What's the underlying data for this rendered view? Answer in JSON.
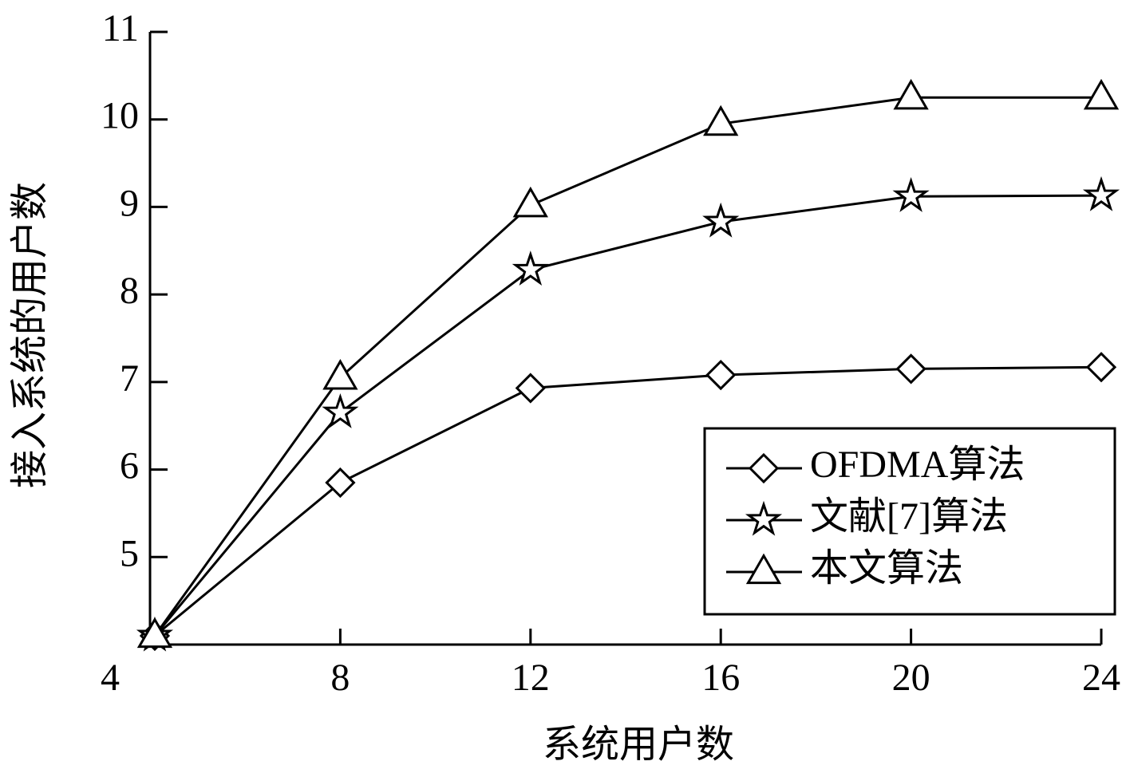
{
  "chart_data": {
    "type": "line",
    "xlabel": "系统用户数",
    "ylabel": "接入系统的用户数",
    "x": [
      4.1,
      8,
      12,
      16,
      20,
      24
    ],
    "series": [
      {
        "name": "OFDMA算法",
        "color": "#000000",
        "marker": "diamond",
        "values": [
          4.1,
          5.85,
          6.93,
          7.08,
          7.15,
          7.17
        ]
      },
      {
        "name": "文献[7]算法",
        "color": "#000000",
        "marker": "star",
        "values": [
          4.1,
          6.65,
          8.28,
          8.83,
          9.12,
          9.13
        ]
      },
      {
        "name": "本文算法",
        "color": "#000000",
        "marker": "triangle",
        "values": [
          4.1,
          7.05,
          9.02,
          9.95,
          10.25,
          10.25
        ]
      }
    ],
    "xlim": [
      4,
      24
    ],
    "xticks": [
      4,
      8,
      12,
      16,
      20,
      24
    ],
    "ylim": [
      4,
      11
    ],
    "yticks": [
      5,
      6,
      7,
      8,
      9,
      10,
      11
    ],
    "legend": "lower right",
    "grid": false
  }
}
